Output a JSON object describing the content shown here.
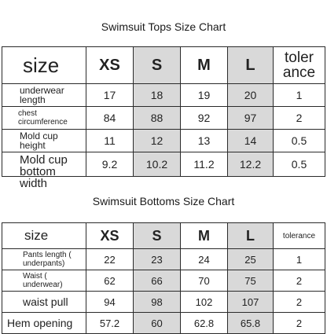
{
  "tops": {
    "title": "Swimsuit Tops Size Chart",
    "header": {
      "label": "size",
      "sizes": [
        "XS",
        "S",
        "M",
        "L"
      ],
      "tolerance": "toler ance"
    },
    "rows": [
      {
        "label": "underwear length",
        "values": [
          "17",
          "18",
          "19",
          "20"
        ],
        "tolerance": "1"
      },
      {
        "label": "chest circumference",
        "values": [
          "84",
          "88",
          "92",
          "97"
        ],
        "tolerance": "2"
      },
      {
        "label": "Mold cup height",
        "values": [
          "11",
          "12",
          "13",
          "14"
        ],
        "tolerance": "0.5"
      },
      {
        "label": "Mold cup bottom width",
        "values": [
          "9.2",
          "10.2",
          "11.2",
          "12.2"
        ],
        "tolerance": "0.5"
      }
    ]
  },
  "bottoms": {
    "title": "Swimsuit Bottoms Size Chart",
    "header": {
      "label": "size",
      "sizes": [
        "XS",
        "S",
        "M",
        "L"
      ],
      "tolerance": "tolerance"
    },
    "rows": [
      {
        "label": "Pants length ( underpants)",
        "values": [
          "22",
          "23",
          "24",
          "25"
        ],
        "tolerance": "1"
      },
      {
        "label": "Waist ( underwear)",
        "values": [
          "62",
          "66",
          "70",
          "75"
        ],
        "tolerance": "2"
      },
      {
        "label": "waist pull",
        "values": [
          "94",
          "98",
          "102",
          "107"
        ],
        "tolerance": "2"
      },
      {
        "label": "Hem opening",
        "values": [
          "57.2",
          "60",
          "62.8",
          "65.8"
        ],
        "tolerance": "2"
      }
    ]
  }
}
